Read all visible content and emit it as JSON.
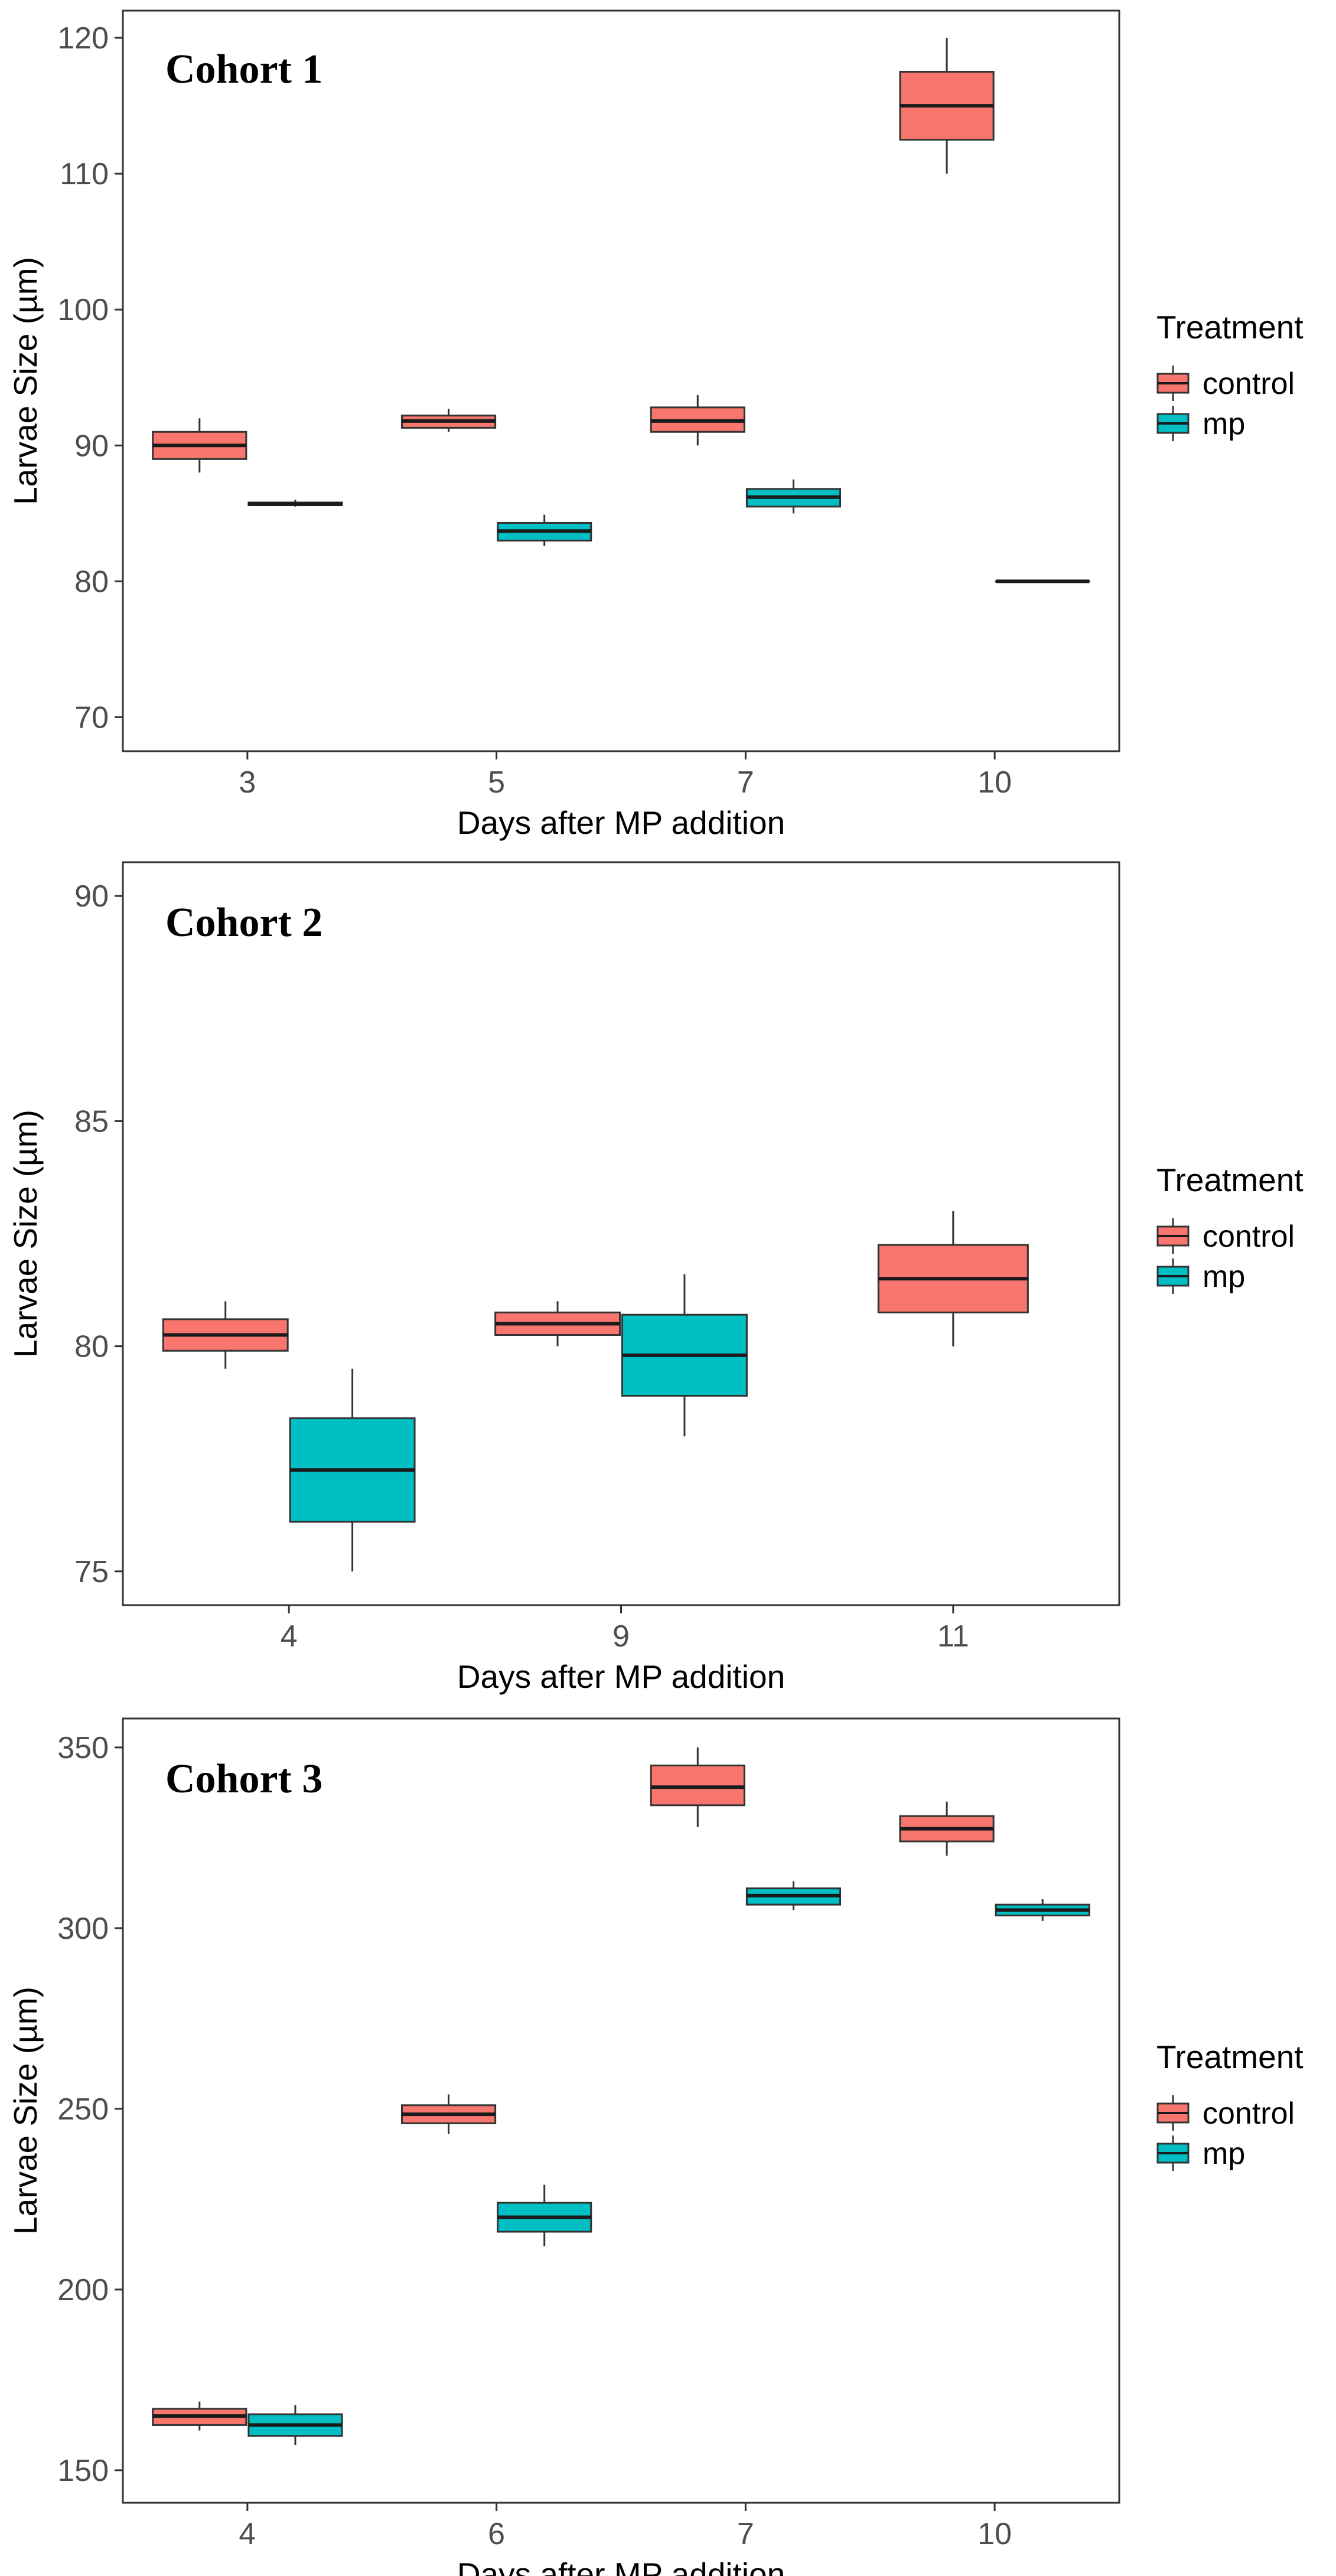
{
  "legend": {
    "title": "Treatment",
    "entries": [
      {
        "label": "control",
        "color": "#F8766D"
      },
      {
        "label": "mp",
        "color": "#00BFC4"
      }
    ]
  },
  "chart_data": [
    {
      "type": "boxplot",
      "title": "Cohort 1",
      "xlabel": "Days after MP addition",
      "ylabel": "Larvae Size (µm)",
      "categories": [
        "3",
        "5",
        "7",
        "10"
      ],
      "ylim": [
        67.5,
        122
      ],
      "yticks": [
        70,
        80,
        90,
        100,
        110,
        120
      ],
      "series": [
        {
          "name": "control",
          "boxes": [
            {
              "min": 88,
              "q1": 89,
              "median": 90,
              "q3": 91,
              "max": 92
            },
            {
              "min": 91,
              "q1": 91.3,
              "median": 91.8,
              "q3": 92.2,
              "max": 92.7
            },
            {
              "min": 90,
              "q1": 91,
              "median": 91.8,
              "q3": 92.8,
              "max": 93.7
            },
            {
              "min": 110,
              "q1": 112.5,
              "median": 115,
              "q3": 117.5,
              "max": 120
            }
          ]
        },
        {
          "name": "mp",
          "boxes": [
            {
              "min": 85.5,
              "q1": 85.6,
              "median": 85.7,
              "q3": 85.8,
              "max": 86
            },
            {
              "min": 82.6,
              "q1": 83,
              "median": 83.7,
              "q3": 84.3,
              "max": 84.9
            },
            {
              "min": 85,
              "q1": 85.5,
              "median": 86.2,
              "q3": 86.8,
              "max": 87.5
            },
            {
              "min": 80,
              "q1": 80,
              "median": 80,
              "q3": 80,
              "max": 80
            }
          ]
        }
      ]
    },
    {
      "type": "boxplot",
      "title": "Cohort 2",
      "xlabel": "Days after MP addition",
      "ylabel": "Larvae Size (µm)",
      "categories": [
        "4",
        "9",
        "11"
      ],
      "ylim": [
        74.25,
        90.75
      ],
      "yticks": [
        75,
        80,
        85,
        90
      ],
      "series": [
        {
          "name": "control",
          "boxes": [
            {
              "min": 79.5,
              "q1": 79.9,
              "median": 80.25,
              "q3": 80.6,
              "max": 81
            },
            {
              "min": 80,
              "q1": 80.25,
              "median": 80.5,
              "q3": 80.75,
              "max": 81
            },
            {
              "min": 80,
              "q1": 80.75,
              "median": 81.5,
              "q3": 82.25,
              "max": 83
            }
          ]
        },
        {
          "name": "mp",
          "boxes": [
            {
              "min": 75,
              "q1": 76.1,
              "median": 77.25,
              "q3": 78.4,
              "max": 79.5
            },
            {
              "min": 78,
              "q1": 78.9,
              "median": 79.8,
              "q3": 80.7,
              "max": 81.6
            },
            null
          ]
        }
      ]
    },
    {
      "type": "boxplot",
      "title": "Cohort 3",
      "xlabel": "Days after MP addition",
      "ylabel": "Larvae Size (µm)",
      "categories": [
        "4",
        "6",
        "7",
        "10"
      ],
      "ylim": [
        141,
        358
      ],
      "yticks": [
        150,
        200,
        250,
        300,
        350
      ],
      "series": [
        {
          "name": "control",
          "boxes": [
            {
              "min": 161,
              "q1": 162.5,
              "median": 165,
              "q3": 167,
              "max": 169
            },
            {
              "min": 243,
              "q1": 246,
              "median": 248.5,
              "q3": 251,
              "max": 254
            },
            {
              "min": 328,
              "q1": 334,
              "median": 339,
              "q3": 345,
              "max": 350
            },
            {
              "min": 320,
              "q1": 324,
              "median": 327.5,
              "q3": 331,
              "max": 335
            }
          ]
        },
        {
          "name": "mp",
          "boxes": [
            {
              "min": 157,
              "q1": 159.5,
              "median": 162.5,
              "q3": 165.5,
              "max": 168
            },
            {
              "min": 212,
              "q1": 216,
              "median": 220,
              "q3": 224,
              "max": 229
            },
            {
              "min": 305,
              "q1": 306.5,
              "median": 309,
              "q3": 311,
              "max": 313
            },
            {
              "min": 302,
              "q1": 303.5,
              "median": 305,
              "q3": 306.5,
              "max": 308
            }
          ]
        }
      ]
    }
  ]
}
